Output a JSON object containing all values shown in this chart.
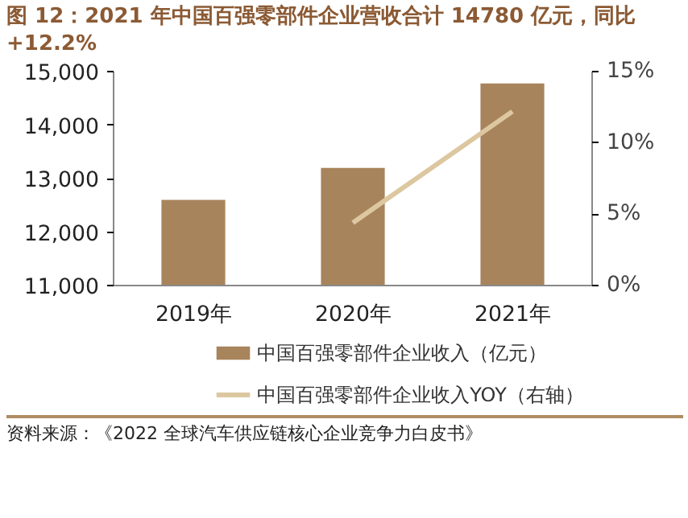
{
  "chart_data": {
    "type": "bar",
    "title": "图 12：2021 年中国百强零部件企业营收合计 14780 亿元，同比+12.2%",
    "categories": [
      "2019年",
      "2020年",
      "2021年"
    ],
    "series": [
      {
        "name": "中国百强零部件企业收入（亿元）",
        "color": "#a8845c",
        "values": [
          12600,
          13200,
          14780
        ]
      },
      {
        "name": "中国百强零部件企业收入YOY（右轴）",
        "type": "line",
        "axis": "y2",
        "color": "#dcc7a0",
        "values": [
          null,
          4.4,
          12.2
        ]
      }
    ],
    "ylim": [
      11000,
      15000
    ],
    "yticks": [
      {
        "value": 11000,
        "label": "11,000"
      },
      {
        "value": 12000,
        "label": "12,000"
      },
      {
        "value": 13000,
        "label": "13,000"
      },
      {
        "value": 14000,
        "label": "14,000"
      },
      {
        "value": 15000,
        "label": "15,000"
      }
    ],
    "y2lim": [
      0,
      15
    ],
    "y2ticks": [
      {
        "value": 0,
        "label": "0%"
      },
      {
        "value": 5,
        "label": "5%"
      },
      {
        "value": 10,
        "label": "10%"
      },
      {
        "value": 15,
        "label": "15%"
      }
    ],
    "grid": false,
    "legend": "bottom",
    "annotations": [
      "资料来源：《2022 全球汽车供应链核心企业竞争力白皮书》"
    ]
  }
}
